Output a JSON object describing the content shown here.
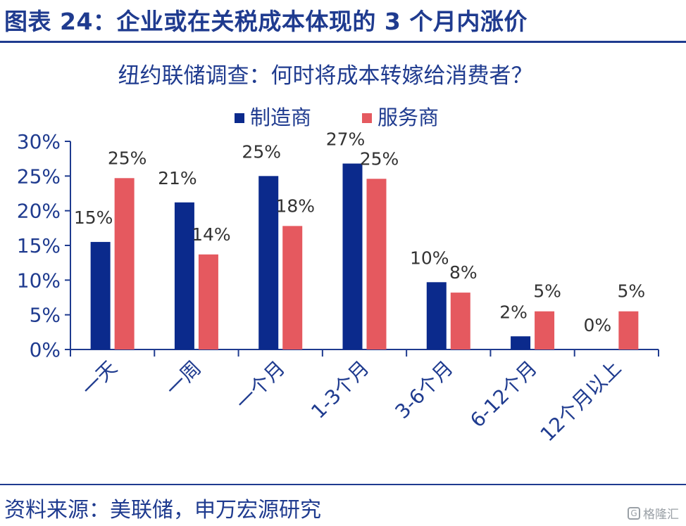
{
  "header": {
    "title": "图表 24：企业或在关税成本体现的 3 个月内涨价"
  },
  "footer": {
    "source": "资料来源：美联储，申万宏源研究"
  },
  "watermark": {
    "text": "格隆汇",
    "icon": "G"
  },
  "colors": {
    "manufacturer": "#0b2a8c",
    "service": "#e5595f",
    "title": "#1f3b8f",
    "axis": "#1f3b8f"
  },
  "chart_data": {
    "type": "bar",
    "title": "纽约联储调查：何时将成本转嫁给消费者？",
    "categories": [
      "一天",
      "一周",
      "一个月",
      "1-3个月",
      "3-6个月",
      "6-12个月",
      "12个月以上"
    ],
    "series": [
      {
        "name": "制造商",
        "values": [
          15.5,
          21.2,
          25.0,
          26.8,
          9.7,
          1.9,
          0.0
        ],
        "labels": [
          "15%",
          "21%",
          "25%",
          "27%",
          "10%",
          "2%",
          "0%"
        ]
      },
      {
        "name": "服务商",
        "values": [
          24.7,
          13.7,
          17.8,
          24.6,
          8.2,
          5.5,
          5.5
        ],
        "labels": [
          "25%",
          "14%",
          "18%",
          "25%",
          "8%",
          "5%",
          "5%"
        ]
      }
    ],
    "yticks": [
      "0%",
      "5%",
      "10%",
      "15%",
      "20%",
      "25%",
      "30%"
    ],
    "ylim": [
      0,
      30
    ],
    "legend": "top-center"
  }
}
